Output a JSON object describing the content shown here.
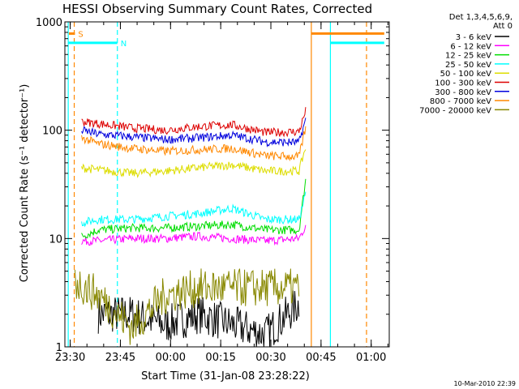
{
  "chart_data": {
    "type": "line",
    "title": "HESSI Observing Summary Count Rates, Corrected",
    "xlabel": "Start Time (31-Jan-08 23:28:22)",
    "ylabel": "Corrected Count Rate (s⁻¹ detector⁻¹)",
    "y_scale": "log",
    "ylim": [
      1,
      1000
    ],
    "xlim_minutes": [
      0,
      97
    ],
    "x_ticks": [
      {
        "label": "23:30",
        "t": 1.6
      },
      {
        "label": "23:45",
        "t": 16.6
      },
      {
        "label": "00:00",
        "t": 31.6
      },
      {
        "label": "00:15",
        "t": 46.6
      },
      {
        "label": "00:30",
        "t": 61.6
      },
      {
        "label": "00:45",
        "t": 76.6
      },
      {
        "label": "01:00",
        "t": 91.6
      }
    ],
    "y_ticks": [
      {
        "label": "1",
        "v": 1
      },
      {
        "label": "10",
        "v": 10
      },
      {
        "label": "100",
        "v": 100
      },
      {
        "label": "1000",
        "v": 1000
      }
    ],
    "legend": {
      "header": [
        "Det 1,3,4,5,6,9,",
        "Att 0"
      ],
      "placement": "right"
    },
    "series": [
      {
        "name": "3 - 6 keV",
        "color": "#000000",
        "t": [
          10,
          20,
          30,
          40,
          50,
          60,
          70
        ],
        "values": [
          2,
          2,
          1.6,
          2,
          1.6,
          1.3,
          2.5
        ]
      },
      {
        "name": "6 - 12 keV",
        "color": "#ff00ff",
        "t": [
          5,
          10,
          20,
          30,
          40,
          50,
          60,
          70,
          72
        ],
        "values": [
          9.5,
          9.5,
          10,
          10,
          10.5,
          10,
          9.5,
          10,
          13
        ]
      },
      {
        "name": "12 - 25 keV",
        "color": "#00dd00",
        "t": [
          5,
          10,
          20,
          30,
          40,
          50,
          60,
          70,
          72
        ],
        "values": [
          10.5,
          12,
          12.5,
          12.5,
          13,
          13.5,
          12,
          12,
          35
        ]
      },
      {
        "name": "25 - 50 keV",
        "color": "#00ffff",
        "t": [
          5,
          10,
          20,
          30,
          40,
          50,
          60,
          70,
          72
        ],
        "values": [
          14,
          15,
          15,
          16,
          17,
          19,
          15,
          15,
          26
        ]
      },
      {
        "name": "50 - 100 keV",
        "color": "#dddd00",
        "t": [
          5,
          10,
          20,
          30,
          40,
          50,
          60,
          70,
          72
        ],
        "values": [
          45,
          43,
          40,
          42,
          45,
          48,
          42,
          42,
          70
        ]
      },
      {
        "name": "100 - 300 keV",
        "color": "#dd0000",
        "t": [
          5,
          10,
          20,
          30,
          40,
          50,
          60,
          70,
          72
        ],
        "values": [
          120,
          115,
          105,
          100,
          108,
          112,
          95,
          97,
          150
        ]
      },
      {
        "name": "300 - 800 keV",
        "color": "#0000dd",
        "t": [
          5,
          10,
          20,
          30,
          40,
          50,
          60,
          70,
          72
        ],
        "values": [
          100,
          92,
          87,
          82,
          85,
          90,
          78,
          77,
          125
        ]
      },
      {
        "name": "800 - 7000 keV",
        "color": "#ff8800",
        "t": [
          5,
          10,
          20,
          30,
          40,
          50,
          60,
          70,
          72
        ],
        "values": [
          85,
          75,
          68,
          64,
          66,
          68,
          58,
          57,
          105
        ]
      },
      {
        "name": "7000 - 20000 keV",
        "color": "#888800",
        "t": [
          3,
          10,
          20,
          30,
          40,
          50,
          60,
          70
        ],
        "values": [
          4,
          3,
          1.5,
          3,
          3.5,
          3.5,
          3.5,
          3.5
        ]
      }
    ],
    "markers": [
      {
        "t": 1.0,
        "color": "#00ffff",
        "style": "solid"
      },
      {
        "t": 2.8,
        "color": "#ff8800",
        "style": "dashed"
      },
      {
        "t": 15.7,
        "color": "#00ffff",
        "style": "dashed"
      },
      {
        "t": 73.7,
        "color": "#ff8800",
        "style": "solid"
      },
      {
        "t": 79.4,
        "color": "#00ffff",
        "style": "solid"
      },
      {
        "t": 90.2,
        "color": "#ff8800",
        "style": "dashed"
      }
    ],
    "bands": [
      {
        "label": "S",
        "color": "#ff8800",
        "t": [
          1.2,
          3.0
        ],
        "value": 780
      },
      {
        "label": "N",
        "color": "#00ffff",
        "t": [
          1.0,
          15.7
        ],
        "value": 640
      },
      {
        "label": "",
        "color": "#ff8800",
        "t": [
          73.7,
          95.5
        ],
        "value": 780
      },
      {
        "label": "",
        "color": "#00ffff",
        "t": [
          79.4,
          95.5
        ],
        "value": 640
      }
    ],
    "grid": false
  },
  "footer": {
    "timestamp": "10-Mar-2010 22:39"
  }
}
